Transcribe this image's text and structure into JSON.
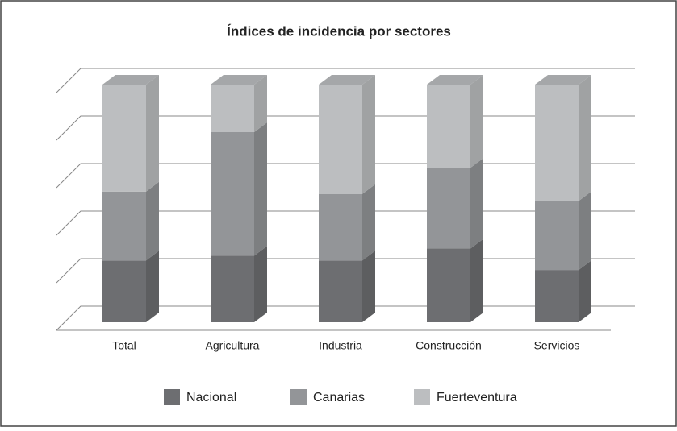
{
  "chart_data": {
    "type": "bar3d_stacked",
    "title": "Índices de incidencia por sectores",
    "categories": [
      "Total",
      "Agricultura",
      "Industria",
      "Construcción",
      "Servicios"
    ],
    "series": [
      {
        "name": "Nacional",
        "color": "#6d6e71",
        "values": [
          26,
          28,
          26,
          31,
          22
        ]
      },
      {
        "name": "Canarias",
        "color": "#939598",
        "values": [
          29,
          52,
          28,
          34,
          29
        ]
      },
      {
        "name": "Fuerteventura",
        "color": "#bcbec0",
        "values": [
          45,
          20,
          46,
          35,
          49
        ]
      }
    ],
    "ylim": [
      0,
      100
    ],
    "yticks": [
      0,
      20,
      40,
      60,
      80,
      100
    ],
    "grid": true,
    "legend": "bottom"
  }
}
